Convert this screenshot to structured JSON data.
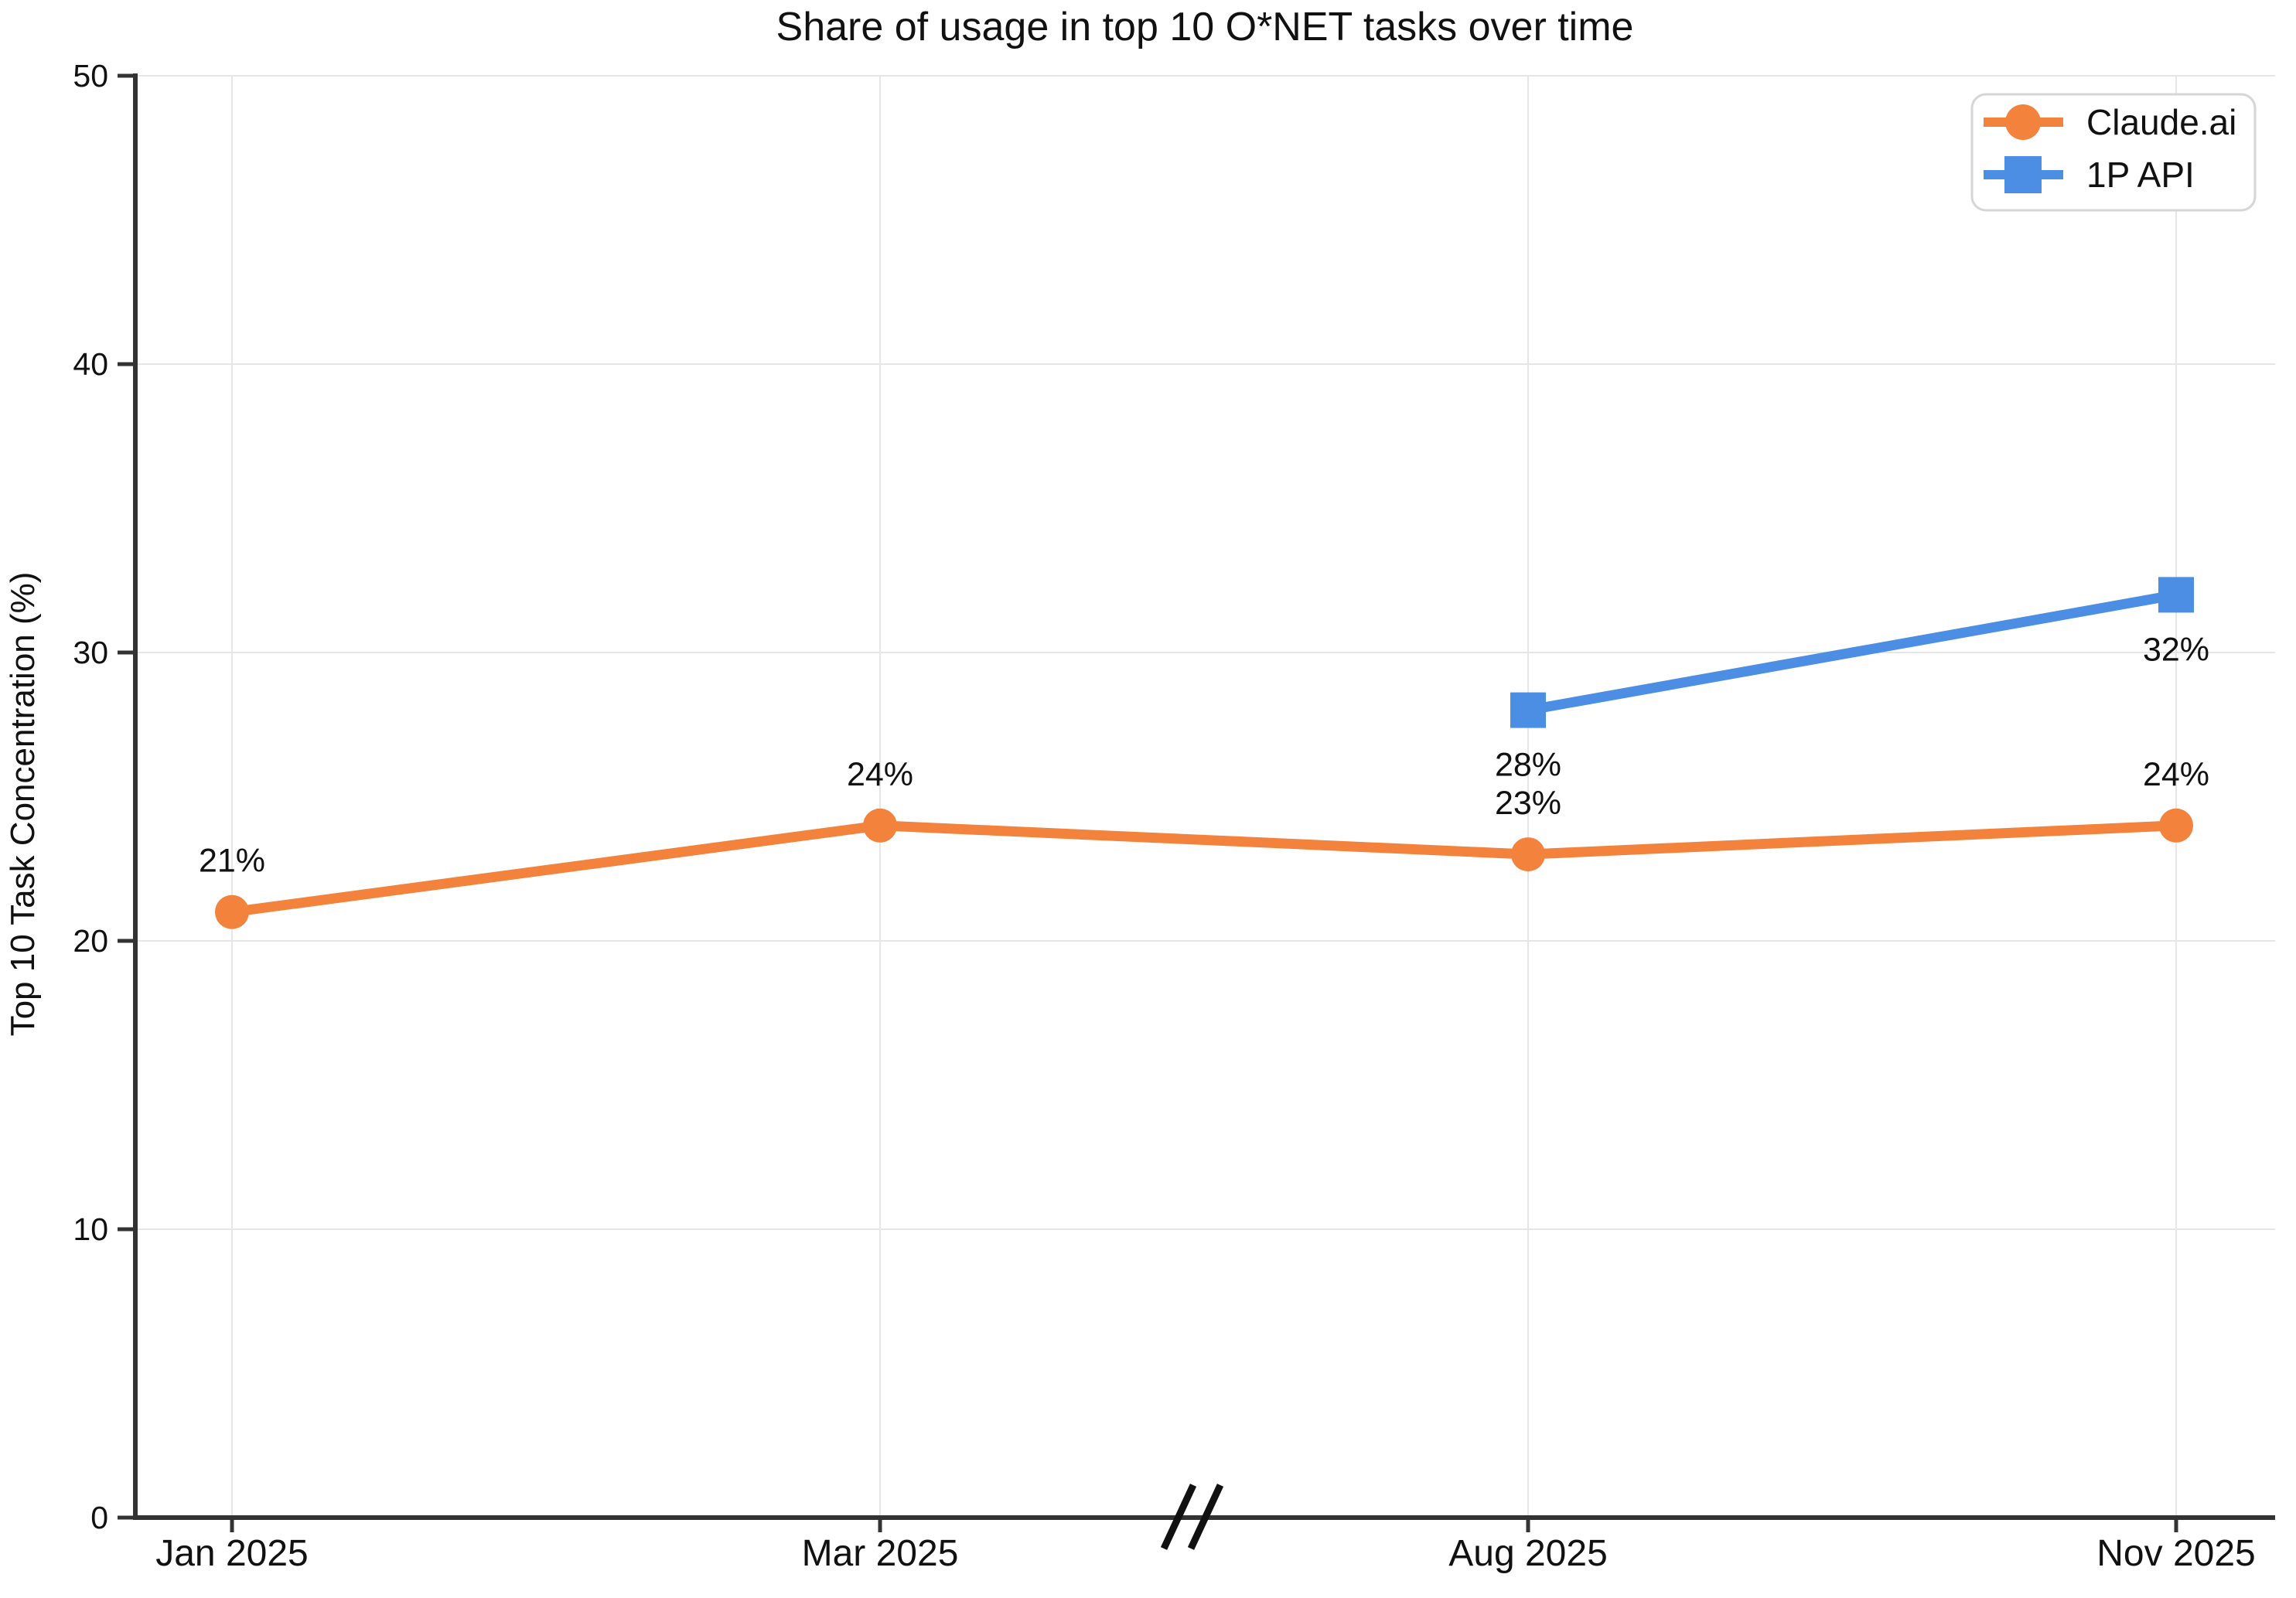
{
  "title": "Share of usage in top 10 O*NET tasks over time",
  "chart_data": {
    "type": "line",
    "title": "Share of usage in top 10 O*NET tasks over time",
    "xlabel": "",
    "ylabel": "Top 10 Task Concentration (%)",
    "ylim": [
      0,
      50
    ],
    "y_ticks": [
      0,
      10,
      20,
      30,
      40,
      50
    ],
    "categories": [
      "Jan 2025",
      "Mar 2025",
      "Aug 2025",
      "Nov 2025"
    ],
    "axis_break": {
      "symbol": "//",
      "between": [
        "Mar 2025",
        "Aug 2025"
      ]
    },
    "grid": true,
    "legend_position": "top-right",
    "series": [
      {
        "name": "Claude.ai",
        "color": "#F2823C",
        "marker": "circle",
        "values": [
          21,
          24,
          23,
          24
        ],
        "point_labels": [
          "21%",
          "24%",
          "23%",
          "24%"
        ],
        "label_placement": "above"
      },
      {
        "name": "1P API",
        "color": "#4C8EE4",
        "marker": "square",
        "values": [
          null,
          null,
          28,
          32
        ],
        "point_labels": [
          null,
          null,
          "28%",
          "32%"
        ],
        "label_placement": "below"
      }
    ],
    "colors": {
      "axis": "#333333",
      "gridline": "#e6e6e6",
      "legend_border": "#d6d6d6",
      "break_mark": "#111111"
    }
  }
}
